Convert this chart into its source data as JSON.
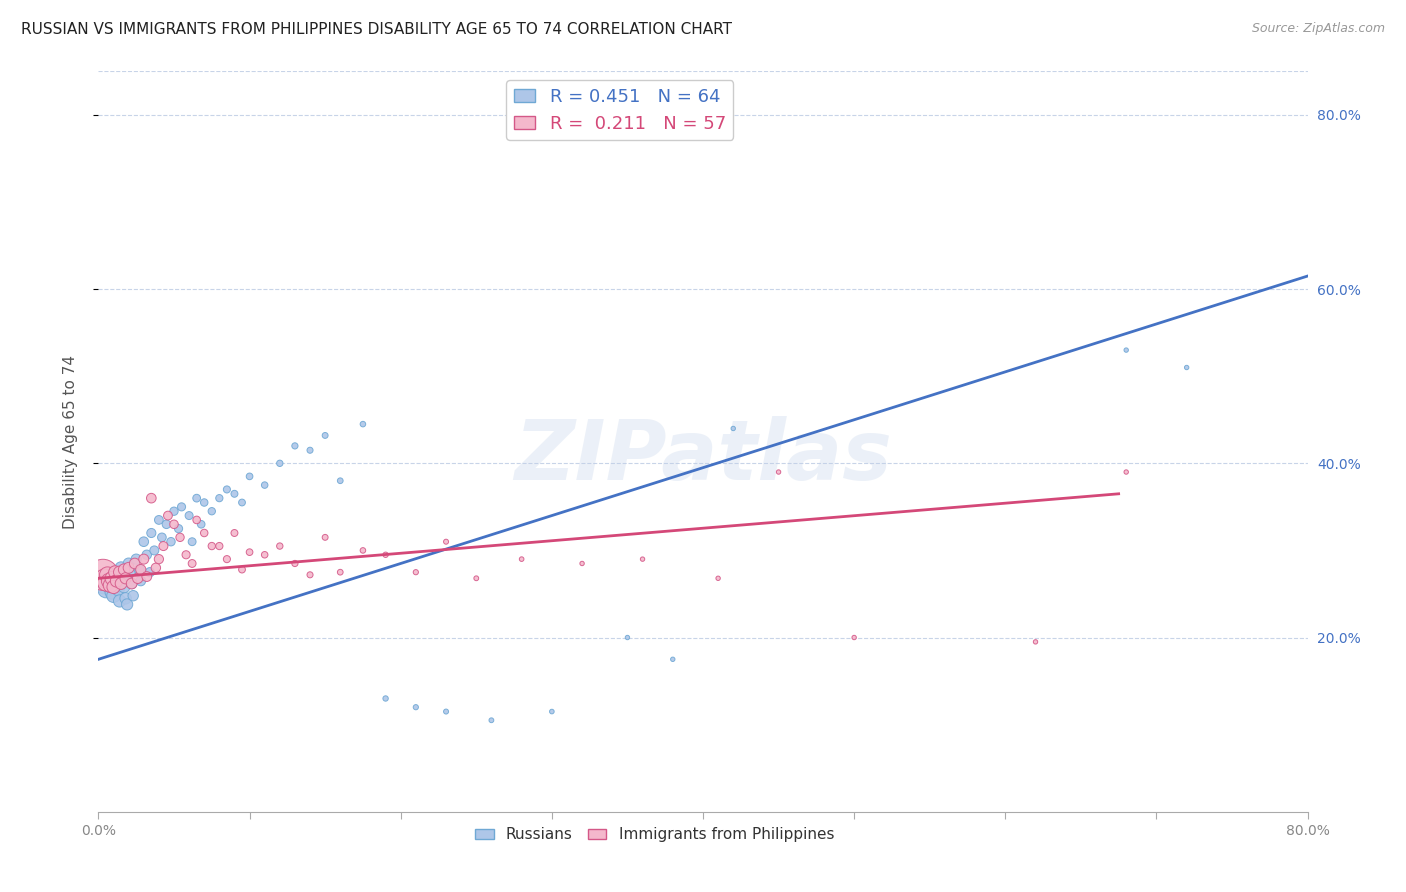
{
  "title": "RUSSIAN VS IMMIGRANTS FROM PHILIPPINES DISABILITY AGE 65 TO 74 CORRELATION CHART",
  "source": "Source: ZipAtlas.com",
  "ylabel": "Disability Age 65 to 74",
  "xlim": [
    0.0,
    0.8
  ],
  "ylim": [
    0.0,
    0.85
  ],
  "xtick_vals": [
    0.0,
    0.1,
    0.2,
    0.3,
    0.4,
    0.5,
    0.6,
    0.7,
    0.8
  ],
  "xtick_labels": [
    "0.0%",
    "",
    "",
    "",
    "",
    "",
    "",
    "",
    "80.0%"
  ],
  "ytick_vals": [
    0.2,
    0.4,
    0.6,
    0.8
  ],
  "ytick_labels": [
    "20.0%",
    "40.0%",
    "60.0%",
    "80.0%"
  ],
  "watermark": "ZIPatlas",
  "legend_label_colors": [
    "#4472c4",
    "#d44878"
  ],
  "series": [
    {
      "name": "Russians",
      "color": "#aec6e8",
      "edge_color": "#6fa8d4",
      "R": 0.451,
      "N": 64,
      "x": [
        0.003,
        0.004,
        0.005,
        0.006,
        0.007,
        0.008,
        0.009,
        0.01,
        0.011,
        0.012,
        0.013,
        0.014,
        0.015,
        0.016,
        0.017,
        0.018,
        0.019,
        0.02,
        0.021,
        0.022,
        0.023,
        0.025,
        0.027,
        0.028,
        0.03,
        0.032,
        0.034,
        0.035,
        0.037,
        0.04,
        0.042,
        0.045,
        0.048,
        0.05,
        0.053,
        0.055,
        0.06,
        0.062,
        0.065,
        0.068,
        0.07,
        0.075,
        0.08,
        0.085,
        0.09,
        0.095,
        0.1,
        0.11,
        0.12,
        0.13,
        0.14,
        0.15,
        0.16,
        0.175,
        0.19,
        0.21,
        0.23,
        0.26,
        0.3,
        0.35,
        0.38,
        0.42,
        0.68,
        0.72
      ],
      "y": [
        0.265,
        0.26,
        0.255,
        0.27,
        0.262,
        0.258,
        0.252,
        0.248,
        0.275,
        0.268,
        0.255,
        0.242,
        0.28,
        0.272,
        0.258,
        0.245,
        0.238,
        0.285,
        0.275,
        0.262,
        0.248,
        0.29,
        0.278,
        0.265,
        0.31,
        0.295,
        0.275,
        0.32,
        0.3,
        0.335,
        0.315,
        0.33,
        0.31,
        0.345,
        0.325,
        0.35,
        0.34,
        0.31,
        0.36,
        0.33,
        0.355,
        0.345,
        0.36,
        0.37,
        0.365,
        0.355,
        0.385,
        0.375,
        0.4,
        0.42,
        0.415,
        0.432,
        0.38,
        0.445,
        0.13,
        0.12,
        0.115,
        0.105,
        0.115,
        0.2,
        0.175,
        0.44,
        0.53,
        0.51
      ],
      "size": [
        200,
        160,
        140,
        130,
        120,
        110,
        100,
        95,
        90,
        85,
        80,
        78,
        75,
        72,
        70,
        68,
        65,
        62,
        60,
        58,
        56,
        54,
        52,
        50,
        48,
        46,
        44,
        43,
        42,
        40,
        39,
        38,
        37,
        36,
        35,
        34,
        33,
        32,
        31,
        30,
        29,
        28,
        27,
        26,
        25,
        24,
        23,
        22,
        21,
        20,
        19,
        18,
        17,
        16,
        15,
        14,
        13,
        12,
        11,
        10,
        10,
        10,
        10,
        10
      ]
    },
    {
      "name": "Immigrants from Philippines",
      "color": "#f4b8cc",
      "edge_color": "#d45888",
      "R": 0.211,
      "N": 57,
      "x": [
        0.003,
        0.004,
        0.005,
        0.006,
        0.007,
        0.008,
        0.009,
        0.01,
        0.011,
        0.012,
        0.014,
        0.015,
        0.017,
        0.018,
        0.02,
        0.022,
        0.024,
        0.026,
        0.028,
        0.03,
        0.032,
        0.035,
        0.038,
        0.04,
        0.043,
        0.046,
        0.05,
        0.054,
        0.058,
        0.062,
        0.065,
        0.07,
        0.075,
        0.08,
        0.085,
        0.09,
        0.095,
        0.1,
        0.11,
        0.12,
        0.13,
        0.14,
        0.15,
        0.16,
        0.175,
        0.19,
        0.21,
        0.23,
        0.25,
        0.28,
        0.32,
        0.36,
        0.41,
        0.45,
        0.5,
        0.62,
        0.68
      ],
      "y": [
        0.272,
        0.268,
        0.263,
        0.272,
        0.265,
        0.26,
        0.268,
        0.258,
        0.275,
        0.265,
        0.275,
        0.262,
        0.278,
        0.268,
        0.28,
        0.262,
        0.285,
        0.268,
        0.278,
        0.29,
        0.27,
        0.36,
        0.28,
        0.29,
        0.305,
        0.34,
        0.33,
        0.315,
        0.295,
        0.285,
        0.335,
        0.32,
        0.305,
        0.305,
        0.29,
        0.32,
        0.278,
        0.298,
        0.295,
        0.305,
        0.285,
        0.272,
        0.315,
        0.275,
        0.3,
        0.295,
        0.275,
        0.31,
        0.268,
        0.29,
        0.285,
        0.29,
        0.268,
        0.39,
        0.2,
        0.195,
        0.39
      ],
      "size": [
        500,
        180,
        150,
        130,
        120,
        110,
        100,
        90,
        85,
        80,
        76,
        72,
        68,
        65,
        62,
        60,
        58,
        56,
        54,
        52,
        50,
        48,
        46,
        44,
        42,
        40,
        38,
        36,
        34,
        32,
        30,
        29,
        28,
        27,
        26,
        25,
        24,
        23,
        22,
        21,
        20,
        19,
        18,
        17,
        16,
        15,
        14,
        13,
        12,
        11,
        10,
        10,
        10,
        10,
        10,
        10,
        10
      ]
    }
  ],
  "trendlines": [
    {
      "name": "Russians",
      "color": "#4472c4",
      "x_start": 0.0,
      "x_end": 0.8,
      "y_start": 0.175,
      "y_end": 0.615
    },
    {
      "name": "Immigrants from Philippines",
      "color": "#d44878",
      "x_start": 0.0,
      "x_end": 0.675,
      "y_start": 0.268,
      "y_end": 0.365
    }
  ],
  "background_color": "#ffffff",
  "grid_color": "#c8d4e8",
  "title_fontsize": 11,
  "axis_label_fontsize": 11,
  "tick_fontsize": 10,
  "watermark_color": "#c0d0e8",
  "watermark_fontsize": 60,
  "watermark_alpha": 0.3
}
